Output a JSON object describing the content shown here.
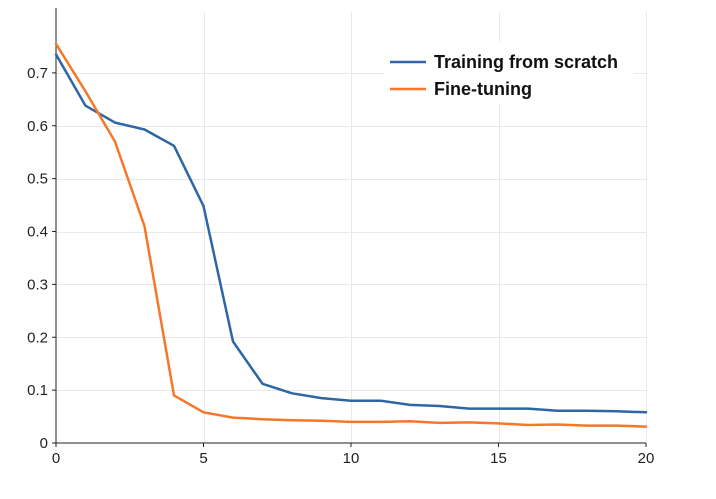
{
  "chart_data": {
    "type": "line",
    "x": [
      0,
      1,
      2,
      3,
      4,
      5,
      6,
      7,
      8,
      9,
      10,
      11,
      12,
      13,
      14,
      15,
      16,
      17,
      18,
      19,
      20
    ],
    "series": [
      {
        "name": "Training from scratch",
        "color": "#2e66a5",
        "values": [
          0.735,
          0.638,
          0.606,
          0.593,
          0.562,
          0.448,
          0.192,
          0.112,
          0.094,
          0.085,
          0.08,
          0.08,
          0.072,
          0.07,
          0.065,
          0.065,
          0.065,
          0.061,
          0.061,
          0.06,
          0.058
        ]
      },
      {
        "name": "Fine-tuning",
        "color": "#f5782a",
        "values": [
          0.755,
          0.665,
          0.57,
          0.41,
          0.09,
          0.058,
          0.048,
          0.045,
          0.043,
          0.042,
          0.04,
          0.04,
          0.041,
          0.038,
          0.039,
          0.037,
          0.034,
          0.035,
          0.033,
          0.033,
          0.031
        ]
      }
    ],
    "xlim": [
      0,
      20
    ],
    "ylim": [
      0,
      0.8
    ],
    "xticks": [
      0,
      5,
      10,
      15,
      20
    ],
    "yticks": [
      0,
      0.1,
      0.2,
      0.3,
      0.4,
      0.5,
      0.6,
      0.7
    ],
    "xtick_labels": [
      "0",
      "5",
      "10",
      "15",
      "20"
    ],
    "ytick_labels": [
      "0",
      "0.1",
      "0.2",
      "0.3",
      "0.4",
      "0.5",
      "0.6",
      "0.7"
    ],
    "title": "",
    "xlabel": "",
    "ylabel": "",
    "grid": true,
    "legend_position": "top-right"
  }
}
